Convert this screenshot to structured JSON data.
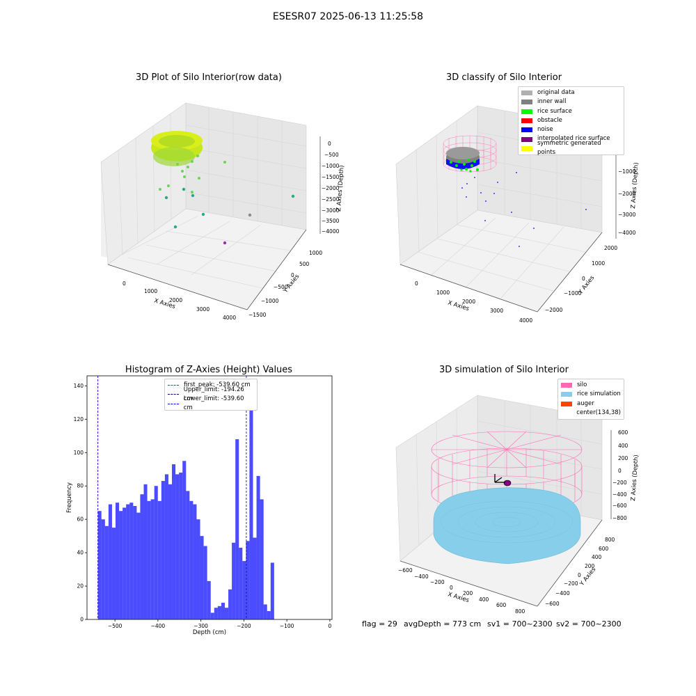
{
  "suptitle": "ESESR07 2025-06-13 11:25:58",
  "panels": {
    "raw": {
      "title": "3D Plot of Silo Interior(row data)",
      "xlabel": "X Axies",
      "ylabel": "Y Axies",
      "zlabel": "Z Axies (Depth)",
      "xticks": [
        "0",
        "1000",
        "2000",
        "3000",
        "4000"
      ],
      "yticks": [
        "−1500",
        "−1000",
        "−500",
        "0",
        "500",
        "1000"
      ],
      "zticks": [
        "0",
        "−500",
        "−1000",
        "−1500",
        "−2000",
        "−2500",
        "−3000",
        "−3500",
        "−4000"
      ]
    },
    "classify": {
      "title": "3D classify of Silo Interior",
      "xlabel": "X Axies",
      "ylabel": "Y Axies",
      "zlabel": "Z Axies (Depth)",
      "xticks": [
        "0",
        "1000",
        "2000",
        "3000",
        "4000"
      ],
      "yticks": [
        "−2000",
        "−1000",
        "0",
        "1000",
        "2000"
      ],
      "zticks": [
        "−1000",
        "−2000",
        "−3000",
        "−4000"
      ],
      "legend": [
        {
          "label": "original data",
          "color": "#b0b0b0"
        },
        {
          "label": "inner wall",
          "color": "#808080"
        },
        {
          "label": "rice surface",
          "color": "#00ff00"
        },
        {
          "label": "obstacle",
          "color": "#ff0000"
        },
        {
          "label": "noise",
          "color": "#0000ff"
        },
        {
          "label": "interpolated rice surface",
          "color": "#800080"
        },
        {
          "label": "symmetric generated points",
          "color": "#ffff00"
        }
      ]
    },
    "simulation": {
      "title": "3D simulation of Silo Interior",
      "xlabel": "X Axies",
      "ylabel": "Y Axies",
      "zlabel": "Z Axies (Depth)",
      "xticks": [
        "−600",
        "−400",
        "−200",
        "0",
        "200",
        "400",
        "600",
        "800"
      ],
      "yticks": [
        "−600",
        "−400",
        "−200",
        "0",
        "200",
        "400",
        "600",
        "800"
      ],
      "zticks": [
        "600",
        "400",
        "200",
        "0",
        "−200",
        "−400",
        "−600",
        "−800"
      ],
      "legend": [
        {
          "label": "silo",
          "color": "#ff69b4"
        },
        {
          "label": "rice simulation",
          "color": "#87ceeb"
        },
        {
          "label": "auger",
          "color": "#ff4500"
        },
        {
          "label": "center(134,38)",
          "color": "#ffffff"
        }
      ]
    }
  },
  "chart_data": {
    "type": "bar",
    "title": "Histogram of Z-Axies (Height) Values",
    "xlabel": "Depth (cm)",
    "ylabel": "Frequency",
    "xlim": [
      -565,
      5
    ],
    "ylim": [
      0,
      146
    ],
    "xticks": [
      -500,
      -400,
      -300,
      -200,
      -100,
      0
    ],
    "yticks": [
      0,
      20,
      40,
      60,
      80,
      100,
      120,
      140
    ],
    "bin_start": -539.6,
    "bin_width": 8.2,
    "values": [
      65,
      60,
      56,
      69,
      55,
      70,
      65,
      67,
      69,
      70,
      68,
      64,
      75,
      81,
      71,
      72,
      80,
      71,
      83,
      87,
      81,
      93,
      87,
      88,
      95,
      77,
      71,
      69,
      60,
      50,
      44,
      23,
      4,
      7,
      8,
      10,
      7,
      18,
      46,
      108,
      43,
      35,
      47,
      139,
      49,
      86,
      72,
      9,
      5,
      34
    ],
    "color": "#0000ff",
    "lines": [
      {
        "label": "first_peak: -539.60 cm",
        "x": -539.6,
        "color": "#ff0000"
      },
      {
        "label": "Upper_limit: -194.26 cm",
        "x": -194.26,
        "color": "#00008b"
      },
      {
        "label": "Lower_limit: -539.60 cm",
        "x": -539.6,
        "color": "#0000ff"
      }
    ]
  },
  "footer": {
    "flag": "flag = 29",
    "avg": "avgDepth = 773 cm",
    "sv1": "sv1 = 700~2300",
    "sv2": "sv2 = 700~2300"
  }
}
